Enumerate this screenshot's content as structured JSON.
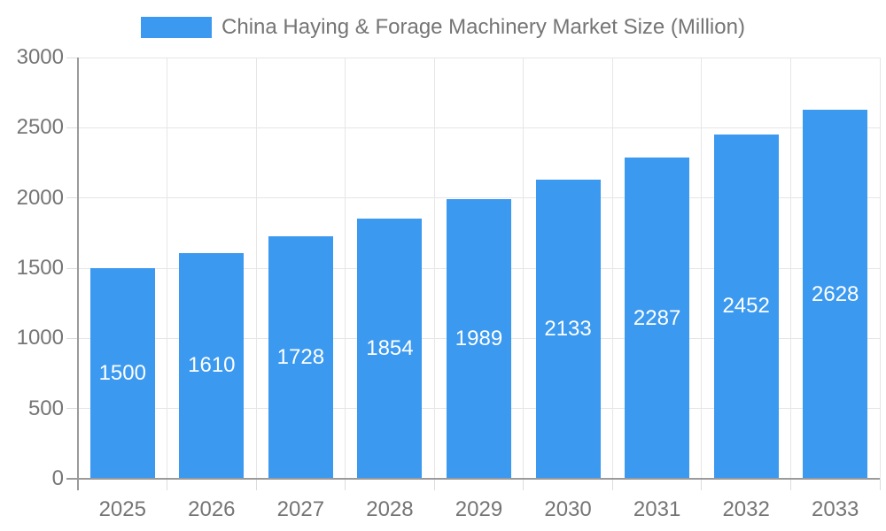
{
  "chart_data": {
    "type": "bar",
    "title": "China Haying & Forage Machinery Market Size (Million)",
    "categories": [
      "2025",
      "2026",
      "2027",
      "2028",
      "2029",
      "2030",
      "2031",
      "2032",
      "2033"
    ],
    "values": [
      1500,
      1610,
      1728,
      1854,
      1989,
      2133,
      2287,
      2452,
      2628
    ],
    "xlabel": "",
    "ylabel": "",
    "ylim": [
      0,
      3000
    ],
    "yticks": [
      0,
      500,
      1000,
      1500,
      2000,
      2500,
      3000
    ],
    "grid": true,
    "legend_position": "top-center",
    "value_labels": "inside-center-white"
  },
  "colors": {
    "bar": "#3B99F0",
    "grid_line": "#E6E6E6",
    "tick_mark": "#DCDCDC",
    "axis_line": "#9A9A9A",
    "axis_text": "#757575",
    "bar_label_text": "#FFFFFF",
    "background": "#FFFFFF"
  }
}
